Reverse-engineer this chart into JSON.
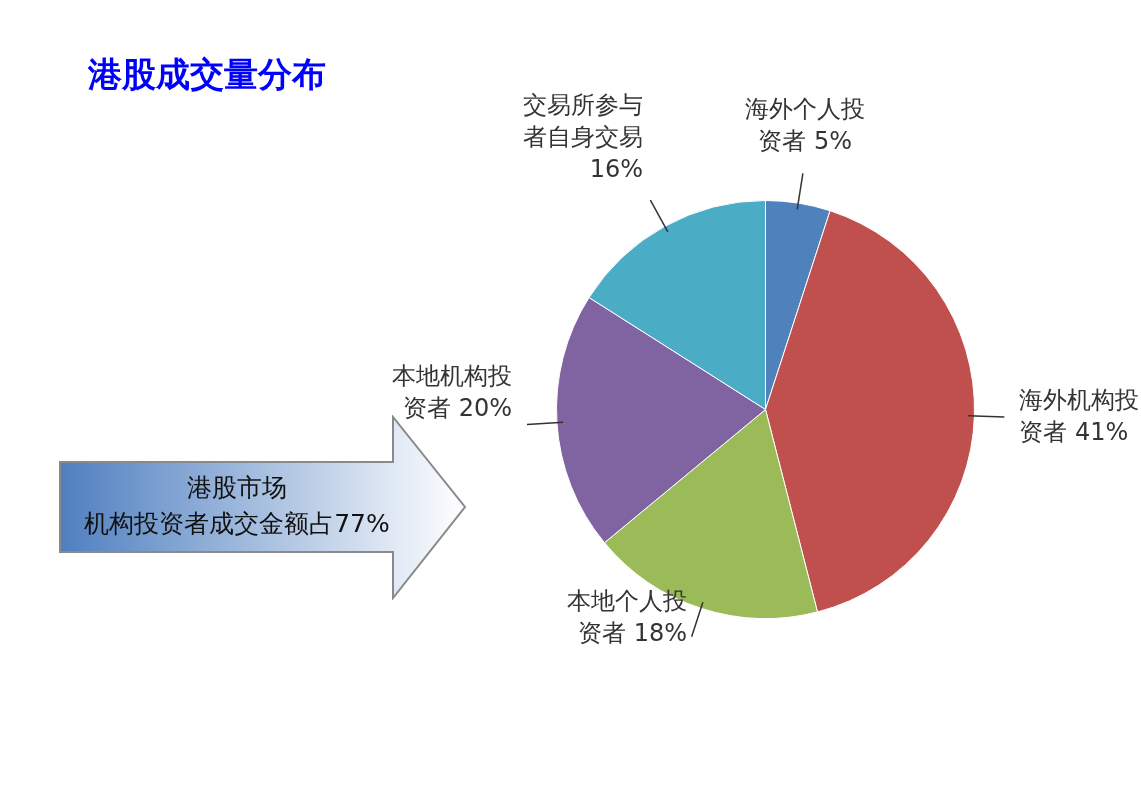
{
  "chart_data": {
    "type": "pie",
    "title": "港股成交量分布",
    "categories": [
      "海外个人投资者",
      "海外机构投资者",
      "本地个人投资者",
      "本地机构投资者",
      "交易所参与者自身交易"
    ],
    "values": [
      5,
      41,
      18,
      20,
      16
    ],
    "value_labels": [
      "5%",
      "41%",
      "18%",
      "20%",
      "16%"
    ],
    "colors": [
      "#4f81bd",
      "#c0504d",
      "#9bbb59",
      "#8064a2",
      "#4bacc6"
    ],
    "annotations": [
      "港股市场",
      "机构投资者成交金额占77%"
    ]
  }
}
